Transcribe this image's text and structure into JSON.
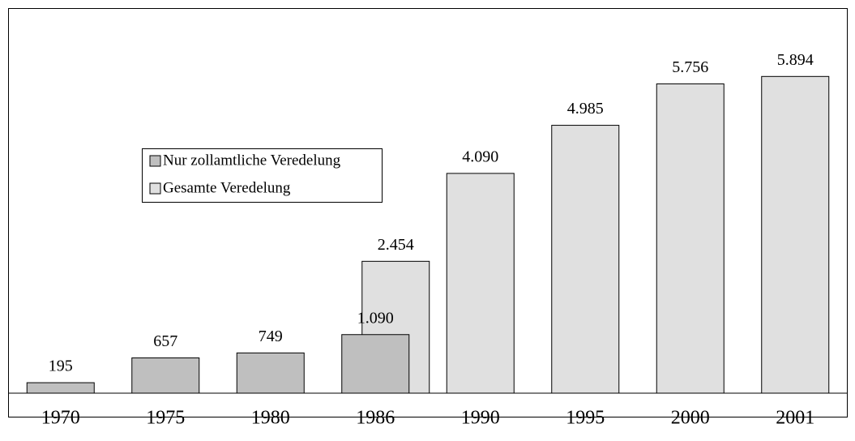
{
  "chart_data": {
    "type": "bar",
    "categories": [
      "1970",
      "1975",
      "1980",
      "1986",
      "1990",
      "1995",
      "2000",
      "2001"
    ],
    "series": [
      {
        "name": "Nur zollamtliche Veredelung",
        "color": "#bfbfbf",
        "values": [
          195,
          657,
          749,
          1090,
          null,
          null,
          null,
          null
        ],
        "value_labels": [
          "195",
          "657",
          "749",
          "1.090",
          null,
          null,
          null,
          null
        ]
      },
      {
        "name": "Gesamte Veredelung",
        "color": "#e0e0e0",
        "values": [
          null,
          null,
          null,
          2454,
          4090,
          4985,
          5756,
          5894
        ],
        "value_labels": [
          null,
          null,
          null,
          "2.454",
          "4.090",
          "4.985",
          "5.756",
          "5.894"
        ]
      }
    ],
    "ylim": [
      0,
      7000
    ],
    "legend": "upper left"
  }
}
